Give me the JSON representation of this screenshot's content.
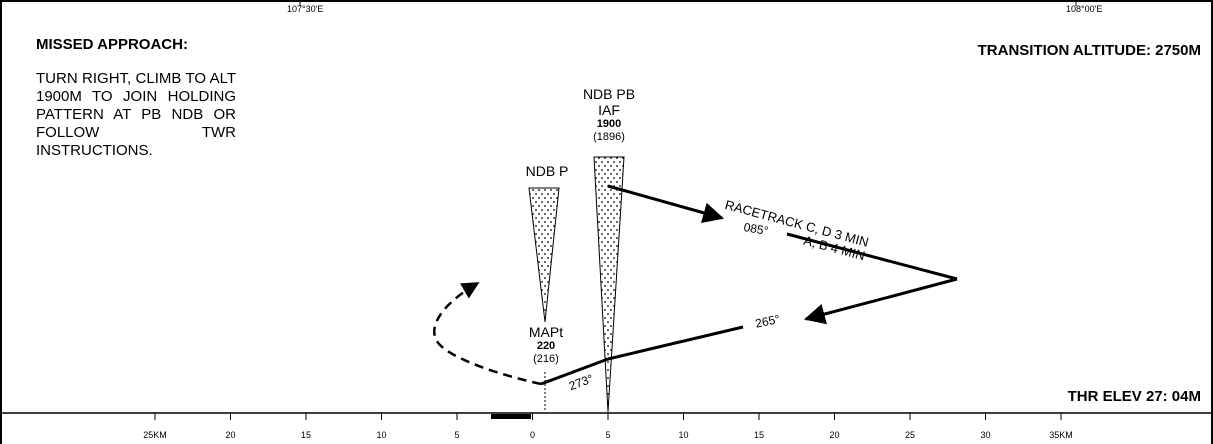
{
  "coords": {
    "left": "107°30'E",
    "right": "108°00'E"
  },
  "missed_approach": {
    "title": "MISSED APPROACH:",
    "text": "TURN RIGHT, CLIMB TO ALT 1900M TO JOIN HOLDING PATTERN AT PB NDB OR FOLLOW TWR INSTRUCTIONS."
  },
  "transition_altitude": "TRANSITION ALTITUDE: 2750M",
  "thr_elev": "THR ELEV 27: 04M",
  "fixes": {
    "ndb_p": {
      "name": "NDB P"
    },
    "ndb_pb": {
      "name": "NDB PB",
      "role": "IAF",
      "alt": "1900",
      "agl": "(1896)"
    },
    "mapt": {
      "name": "MAPt",
      "alt": "220",
      "agl": "(216)"
    }
  },
  "racetrack": {
    "line1": "RACETRACK C, D 3 MIN",
    "line2": "A, B 4 MIN"
  },
  "bearings": {
    "outbound": "085°",
    "inbound": "265°",
    "final": "273°"
  },
  "scale": {
    "labels": [
      "25KM",
      "20",
      "15",
      "10",
      "5",
      "0",
      "5",
      "10",
      "15",
      "20",
      "25",
      "30",
      "35KM"
    ]
  },
  "colors": {
    "ink": "#000000",
    "paper": "#ffffff"
  }
}
